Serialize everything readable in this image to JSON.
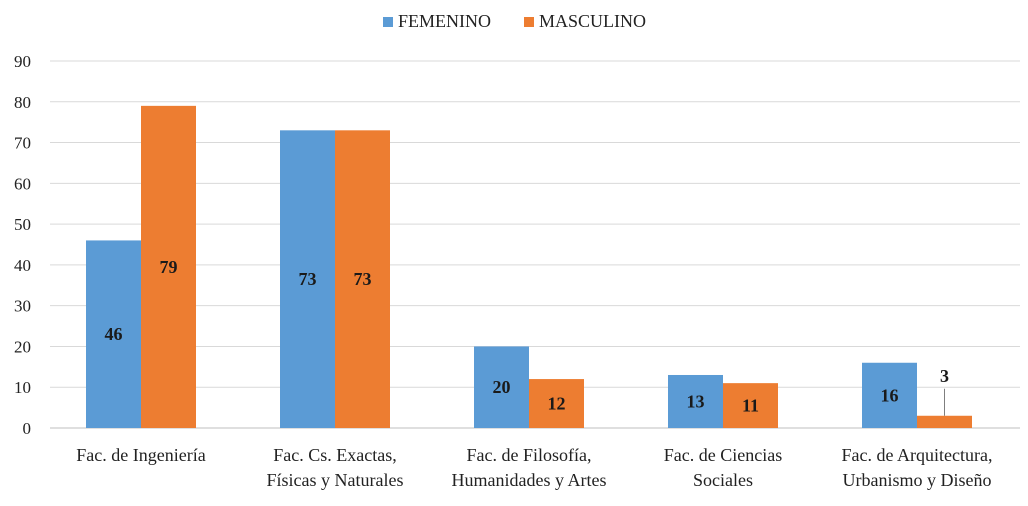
{
  "chart_data": {
    "type": "bar",
    "title": "",
    "xlabel": "",
    "ylabel": "",
    "ylim": [
      0,
      90
    ],
    "yticks": [
      0,
      10,
      20,
      30,
      40,
      50,
      60,
      70,
      80,
      90
    ],
    "grid": true,
    "legend_position": "top",
    "categories": [
      [
        "Fac. de Ingeniería"
      ],
      [
        "Fac. Cs. Exactas,",
        "Físicas y Naturales"
      ],
      [
        "Fac. de Filosofía,",
        "Humanidades y Artes"
      ],
      [
        "Fac. de Ciencias",
        "Sociales"
      ],
      [
        "Fac. de Arquitectura,",
        "Urbanismo y Diseño"
      ]
    ],
    "series": [
      {
        "name": "FEMENINO",
        "color": "#5B9BD5",
        "values": [
          46,
          73,
          20,
          13,
          16
        ]
      },
      {
        "name": "MASCULINO",
        "color": "#ED7D31",
        "values": [
          79,
          73,
          12,
          11,
          3
        ]
      }
    ]
  }
}
